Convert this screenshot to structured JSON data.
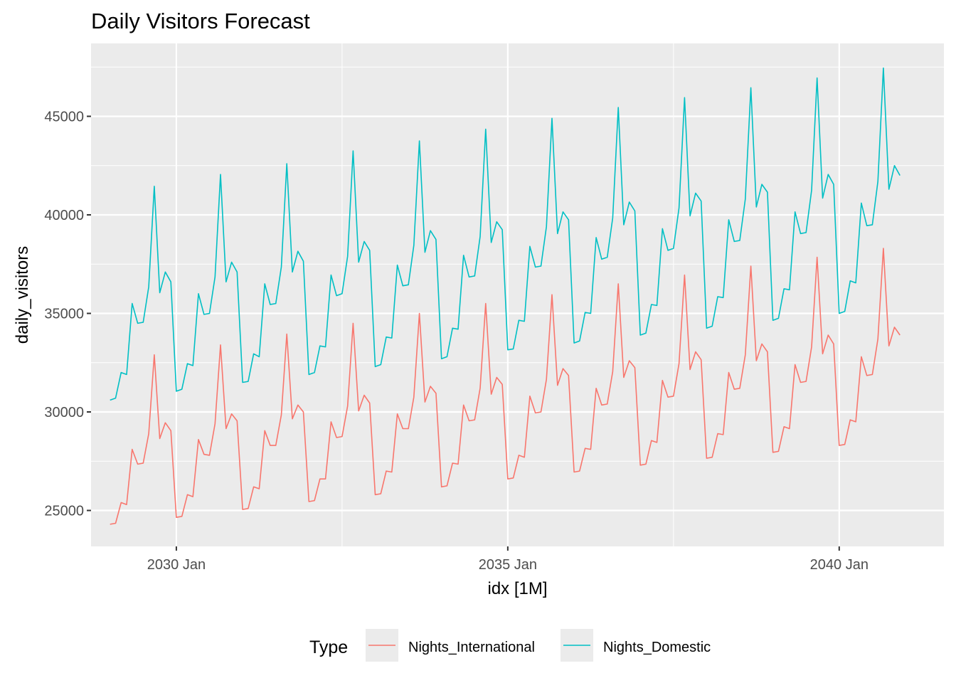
{
  "chart_data": {
    "type": "line",
    "title": "Daily Visitors Forecast",
    "xlabel": "idx [1M]",
    "ylabel": "daily_visitors",
    "x_start": "2029-01",
    "x_frequency": "monthly",
    "x_ticks": [
      "2030 Jan",
      "2035 Jan",
      "2040 Jan"
    ],
    "y_ticks": [
      25000,
      30000,
      35000,
      40000,
      45000
    ],
    "ylim": [
      23600,
      48000
    ],
    "legend_title": "Type",
    "legend_position": "bottom",
    "grid": true,
    "series": [
      {
        "name": "Nights_International",
        "color": "#F8766D",
        "values": [
          24300,
          24350,
          25400,
          25300,
          28100,
          27350,
          27400,
          28900,
          32900,
          28650,
          29450,
          29050,
          24650,
          24700,
          25800,
          25700,
          28600,
          27850,
          27800,
          29400,
          33400,
          29150,
          29900,
          29550,
          25050,
          25100,
          26200,
          26100,
          29050,
          28300,
          28300,
          29850,
          33950,
          29650,
          30350,
          30000,
          25450,
          25500,
          26600,
          26600,
          29500,
          28700,
          28750,
          30300,
          34500,
          30050,
          30850,
          30450,
          25800,
          25850,
          27000,
          26950,
          29900,
          29150,
          29150,
          30750,
          35000,
          30500,
          31300,
          30950,
          26200,
          26250,
          27400,
          27350,
          30350,
          29550,
          29600,
          31200,
          35500,
          30900,
          31750,
          31400,
          26600,
          26650,
          27800,
          27700,
          30800,
          29950,
          30000,
          31650,
          35950,
          31350,
          32200,
          31850,
          26950,
          27000,
          28150,
          28100,
          31200,
          30350,
          30400,
          32050,
          36500,
          31750,
          32600,
          32250,
          27300,
          27350,
          28550,
          28450,
          31600,
          30750,
          30800,
          32450,
          36950,
          32150,
          33050,
          32650,
          27650,
          27700,
          28900,
          28850,
          32000,
          31150,
          31200,
          32900,
          37400,
          32600,
          33450,
          33050,
          27950,
          28000,
          29250,
          29150,
          32400,
          31500,
          31550,
          33300,
          37850,
          32950,
          33900,
          33450,
          28300,
          28350,
          29600,
          29500,
          32800,
          31850,
          31900,
          33700,
          38300,
          33350,
          34300,
          33900
        ]
      },
      {
        "name": "Nights_Domestic",
        "color": "#00BFC4",
        "values": [
          30600,
          30700,
          32000,
          31900,
          35500,
          34500,
          34550,
          36350,
          41450,
          36050,
          37100,
          36600,
          31050,
          31150,
          32450,
          32350,
          36000,
          34950,
          35000,
          36850,
          42050,
          36600,
          37600,
          37100,
          31500,
          31550,
          32950,
          32800,
          36500,
          35450,
          35500,
          37350,
          42600,
          37100,
          38150,
          37650,
          31900,
          32000,
          33350,
          33300,
          36950,
          35900,
          36000,
          37900,
          43250,
          37600,
          38650,
          38200,
          32300,
          32400,
          33800,
          33750,
          37450,
          36400,
          36450,
          38450,
          43750,
          38100,
          39200,
          38750,
          32700,
          32800,
          34250,
          34200,
          37950,
          36850,
          36900,
          38900,
          44350,
          38600,
          39650,
          39250,
          33150,
          33200,
          34650,
          34600,
          38400,
          37350,
          37400,
          39400,
          44900,
          39050,
          40150,
          39750,
          33500,
          33600,
          35050,
          35000,
          38850,
          37750,
          37850,
          39850,
          45450,
          39500,
          40650,
          40200,
          33900,
          34000,
          35450,
          35400,
          39300,
          38200,
          38300,
          40350,
          45950,
          39950,
          41100,
          40700,
          34250,
          34350,
          35850,
          35800,
          39750,
          38650,
          38700,
          40800,
          46450,
          40400,
          41550,
          41150,
          34650,
          34750,
          36250,
          36200,
          40150,
          39050,
          39100,
          41250,
          46950,
          40850,
          42050,
          41550,
          35000,
          35100,
          36650,
          36550,
          40600,
          39450,
          39500,
          41700,
          47450,
          41300,
          42500,
          42000
        ]
      }
    ]
  }
}
